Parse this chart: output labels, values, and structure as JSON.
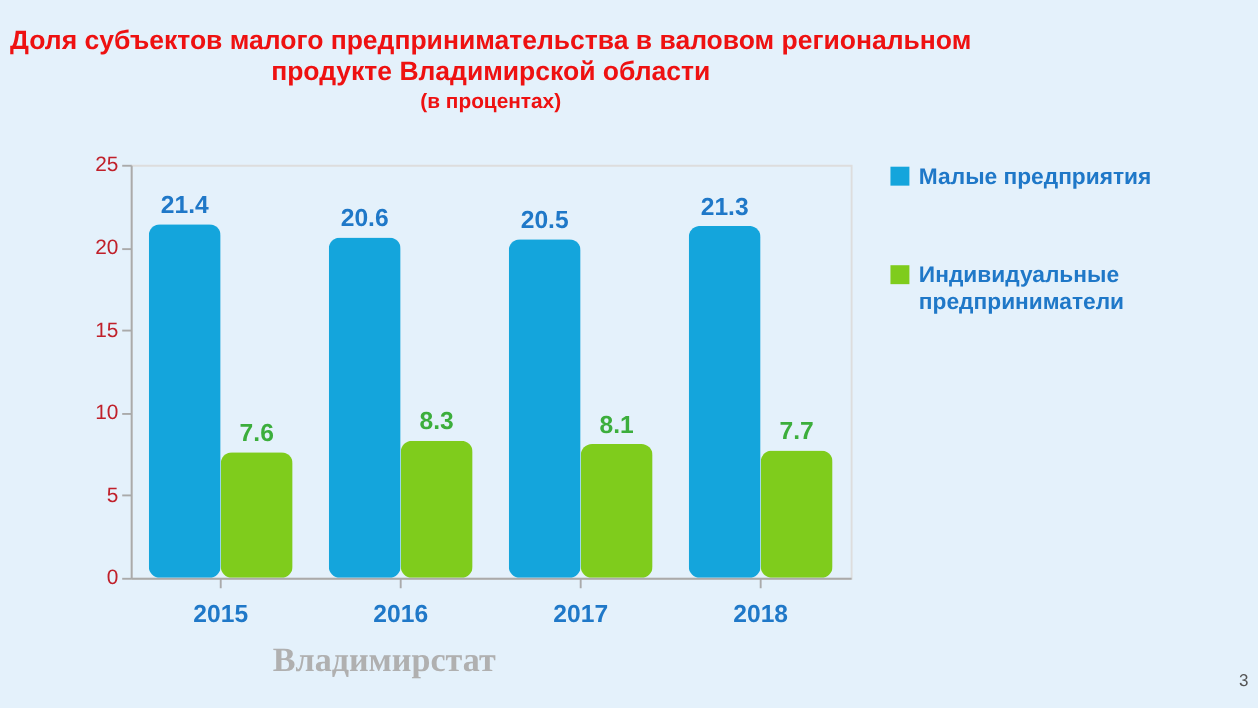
{
  "chart_data": {
    "type": "bar",
    "title": "Доля субъектов малого предпринимательства в валовом региональном продукте Владимирской области",
    "subtitle": "(в процентах)",
    "categories": [
      "2015",
      "2016",
      "2017",
      "2018"
    ],
    "series": [
      {
        "name": "Малые предприятия",
        "color": "#14a5dc",
        "values": [
          21.4,
          20.6,
          20.5,
          21.3
        ]
      },
      {
        "name": "Индивидуальные предприниматели",
        "color": "#7fcc1c",
        "values": [
          7.6,
          8.3,
          8.1,
          7.7
        ]
      }
    ],
    "ylim": [
      0,
      25
    ],
    "yticks": [
      0,
      5,
      10,
      15,
      20,
      25
    ],
    "grid": false,
    "legend": "right",
    "data_labels": true,
    "annotations": [
      "Владимирстат",
      "3"
    ]
  }
}
